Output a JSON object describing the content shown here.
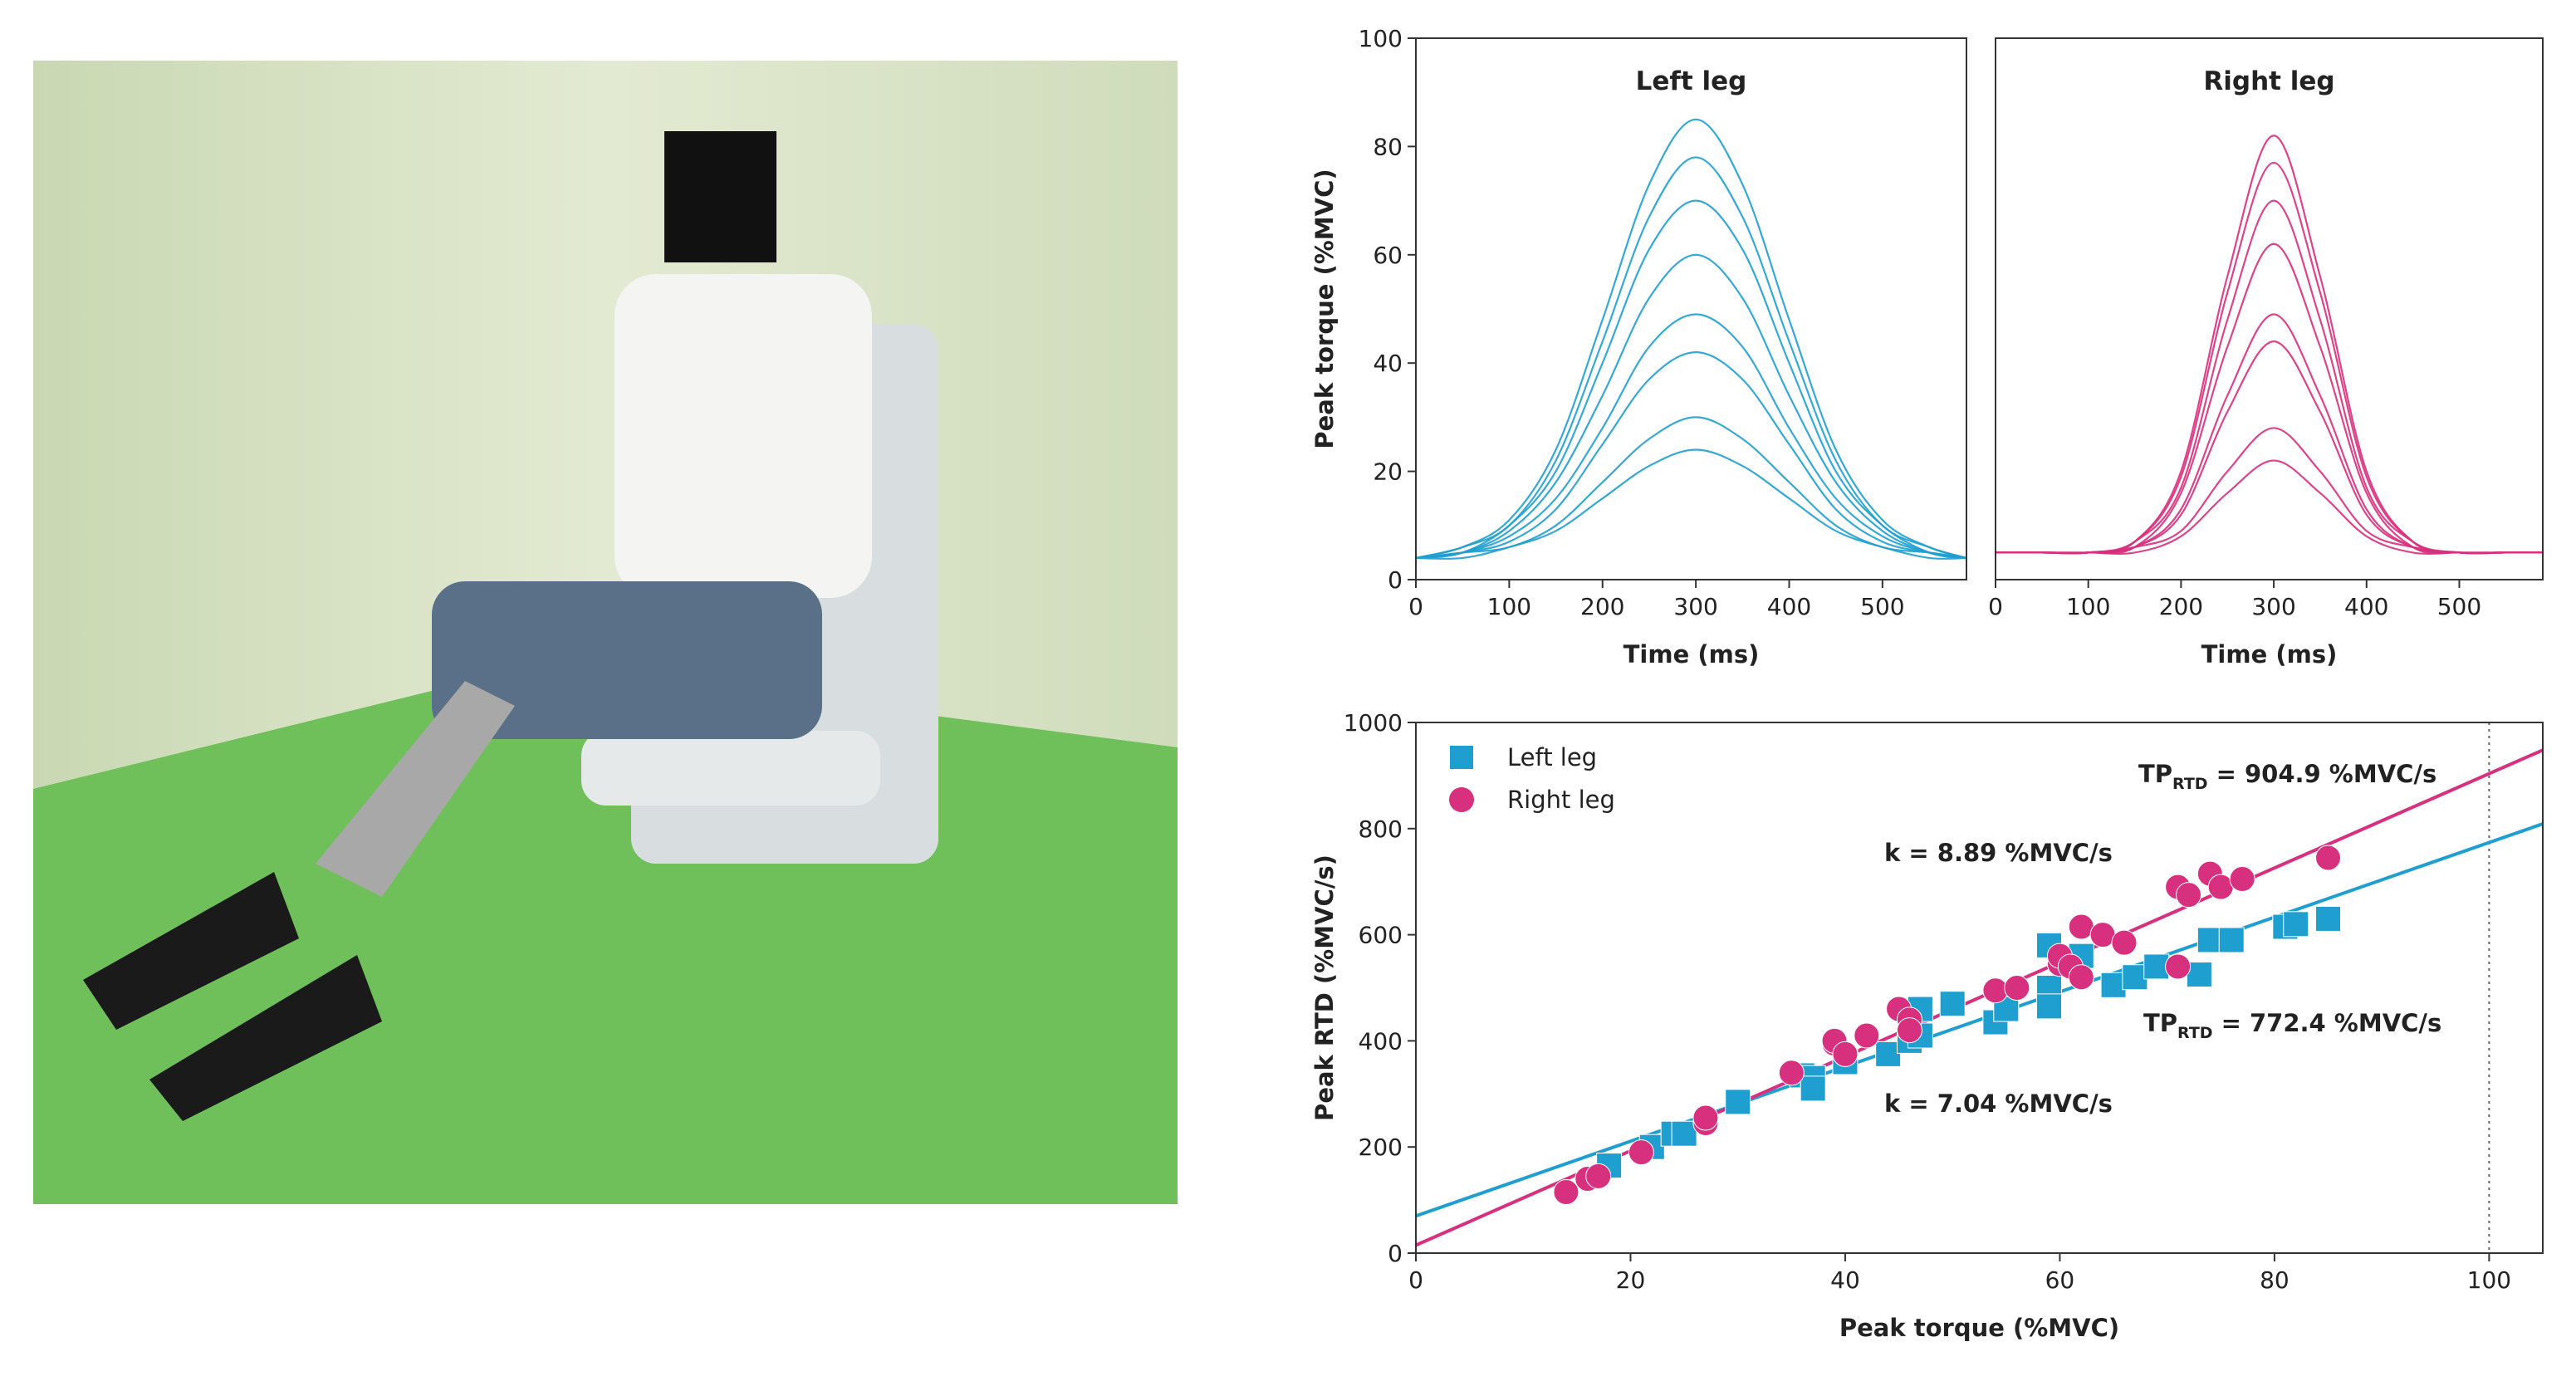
{
  "chart_data": [
    {
      "type": "line",
      "title": "Left leg",
      "xlabel": "Time (ms)",
      "ylabel": "Peak torque (%MVC)",
      "color": "#1f9fcf",
      "x": [
        0,
        50,
        100,
        150,
        200,
        250,
        300,
        350,
        400,
        450,
        500,
        550,
        590
      ],
      "series": [
        {
          "values": [
            4,
            6,
            11,
            24,
            48,
            73,
            85,
            73,
            48,
            24,
            11,
            6,
            4
          ]
        },
        {
          "values": [
            4,
            6,
            10,
            22,
            44,
            67,
            78,
            67,
            44,
            22,
            10,
            6,
            4
          ]
        },
        {
          "values": [
            4,
            5,
            10,
            20,
            40,
            61,
            70,
            61,
            40,
            20,
            10,
            5,
            4
          ]
        },
        {
          "values": [
            4,
            5,
            9,
            18,
            34,
            52,
            60,
            52,
            34,
            18,
            9,
            5,
            4
          ]
        },
        {
          "values": [
            4,
            5,
            8,
            15,
            28,
            43,
            49,
            43,
            28,
            15,
            8,
            5,
            4
          ]
        },
        {
          "values": [
            4,
            5,
            7,
            13,
            25,
            37,
            42,
            37,
            25,
            13,
            7,
            5,
            4
          ]
        },
        {
          "values": [
            4,
            5,
            6,
            10,
            18,
            26,
            30,
            26,
            18,
            10,
            6,
            5,
            4
          ]
        },
        {
          "values": [
            4,
            4,
            6,
            9,
            15,
            21,
            24,
            21,
            15,
            9,
            6,
            4,
            4
          ]
        }
      ],
      "xlim": [
        0,
        590
      ],
      "xticks": [
        0,
        100,
        200,
        300,
        400,
        500
      ],
      "ylim": [
        0,
        100
      ],
      "yticks": [
        0,
        20,
        40,
        60,
        80,
        100
      ]
    },
    {
      "type": "line",
      "title": "Right leg",
      "xlabel": "Time (ms)",
      "color": "#d6307e",
      "x": [
        0,
        50,
        100,
        150,
        200,
        250,
        300,
        350,
        400,
        450,
        500,
        550,
        590
      ],
      "series": [
        {
          "values": [
            5,
            5,
            5,
            7,
            20,
            56,
            82,
            56,
            20,
            7,
            5,
            5,
            5
          ]
        },
        {
          "values": [
            5,
            5,
            5,
            7,
            19,
            53,
            77,
            53,
            19,
            7,
            5,
            5,
            5
          ]
        },
        {
          "values": [
            5,
            5,
            5,
            7,
            17,
            48,
            70,
            48,
            17,
            7,
            5,
            5,
            5
          ]
        },
        {
          "values": [
            5,
            5,
            5,
            6,
            16,
            43,
            62,
            43,
            16,
            6,
            5,
            5,
            5
          ]
        },
        {
          "values": [
            5,
            5,
            5,
            6,
            13,
            34,
            49,
            34,
            13,
            6,
            5,
            5,
            5
          ]
        },
        {
          "values": [
            5,
            5,
            5,
            6,
            12,
            31,
            44,
            31,
            12,
            6,
            5,
            5,
            5
          ]
        },
        {
          "values": [
            5,
            5,
            5,
            6,
            9,
            20,
            28,
            20,
            9,
            6,
            5,
            5,
            5
          ]
        },
        {
          "values": [
            5,
            5,
            5,
            5,
            8,
            16,
            22,
            16,
            8,
            5,
            5,
            5,
            5
          ]
        }
      ],
      "xlim": [
        0,
        590
      ],
      "xticks": [
        0,
        100,
        200,
        300,
        400,
        500
      ],
      "ylim": [
        0,
        100
      ]
    },
    {
      "type": "scatter",
      "xlabel": "Peak torque (%MVC)",
      "ylabel": "Peak RTD (%MVC/s)",
      "legend": "upper left",
      "series": [
        {
          "name": "Left leg",
          "color": "#1f9fcf",
          "marker": "square",
          "x": [
            18,
            22,
            24,
            25,
            30,
            36,
            37,
            37,
            40,
            44,
            46,
            47,
            47,
            50,
            54,
            55,
            59,
            59,
            59,
            62,
            65,
            67,
            69,
            73,
            74,
            76,
            81,
            82,
            85
          ],
          "values": [
            165,
            200,
            225,
            225,
            285,
            335,
            330,
            310,
            360,
            375,
            400,
            410,
            460,
            470,
            435,
            460,
            580,
            500,
            465,
            560,
            505,
            520,
            540,
            525,
            590,
            590,
            615,
            620,
            630
          ]
        },
        {
          "name": "Right leg",
          "color": "#d6307e",
          "marker": "circle",
          "x": [
            14,
            16,
            17,
            21,
            27,
            27,
            35,
            39,
            39,
            40,
            42,
            45,
            46,
            46,
            54,
            56,
            60,
            60,
            61,
            62,
            62,
            64,
            66,
            71,
            71,
            72,
            74,
            75,
            77,
            85
          ],
          "values": [
            115,
            140,
            145,
            190,
            245,
            255,
            340,
            395,
            400,
            375,
            410,
            460,
            440,
            420,
            495,
            500,
            545,
            560,
            540,
            615,
            520,
            600,
            585,
            540,
            690,
            675,
            715,
            690,
            705,
            745
          ]
        }
      ],
      "fits": [
        {
          "color": "#1f9fcf",
          "x": [
            0,
            105
          ],
          "values": [
            70,
            809
          ]
        },
        {
          "color": "#d6307e",
          "x": [
            0,
            105
          ],
          "values": [
            15,
            948
          ]
        }
      ],
      "vline": 100,
      "annotations": [
        {
          "text": "TP",
          "subscript": "RTD",
          "suffix": "= 904.9 %MVC/s"
        },
        {
          "text": "k = 8.89 %MVC/s"
        },
        {
          "text": "TP",
          "subscript": "RTD",
          "suffix": "= 772.4 %MVC/s"
        },
        {
          "text": "k = 7.04 %MVC/s"
        }
      ],
      "xlim": [
        0,
        105
      ],
      "xticks": [
        0,
        20,
        40,
        60,
        80,
        100
      ],
      "ylim": [
        0,
        1000
      ],
      "yticks": [
        0,
        200,
        400,
        600,
        800,
        1000
      ]
    }
  ]
}
